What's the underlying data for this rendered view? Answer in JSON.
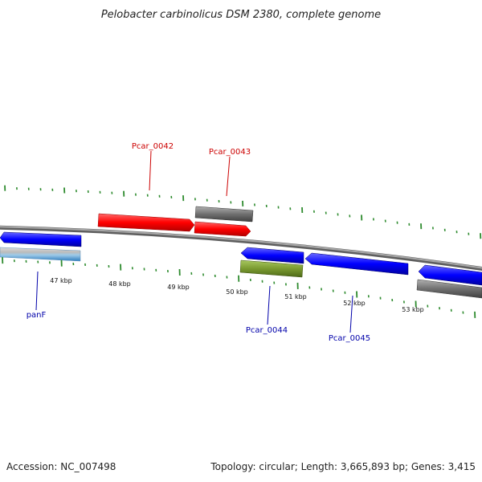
{
  "title": "Pelobacter carbinolicus DSM 2380, complete genome",
  "footer": {
    "accession": "Accession: NC_007498",
    "summary": "Topology: circular; Length: 3,665,893 bp; Genes: 3,415"
  },
  "ruler": {
    "labels": [
      "47 kbp",
      "48 kbp",
      "49 kbp",
      "50 kbp",
      "51 kbp",
      "52 kbp",
      "53 kbp"
    ]
  },
  "gene_labels": {
    "pcar0042": "Pcar_0042",
    "pcar0043": "Pcar_0043",
    "panf": "panF",
    "pcar0044": "Pcar_0044",
    "pcar0045": "Pcar_0045"
  },
  "colors": {
    "forward_label": "#cc0000",
    "reverse_label": "#0000aa",
    "forward_cds": "#ff0000",
    "reverse_cds": "#0000ff",
    "rna": "#808080",
    "olive": "#7a9a30",
    "tick": "#2e8b2e",
    "backbone": "#8a8a8a"
  }
}
